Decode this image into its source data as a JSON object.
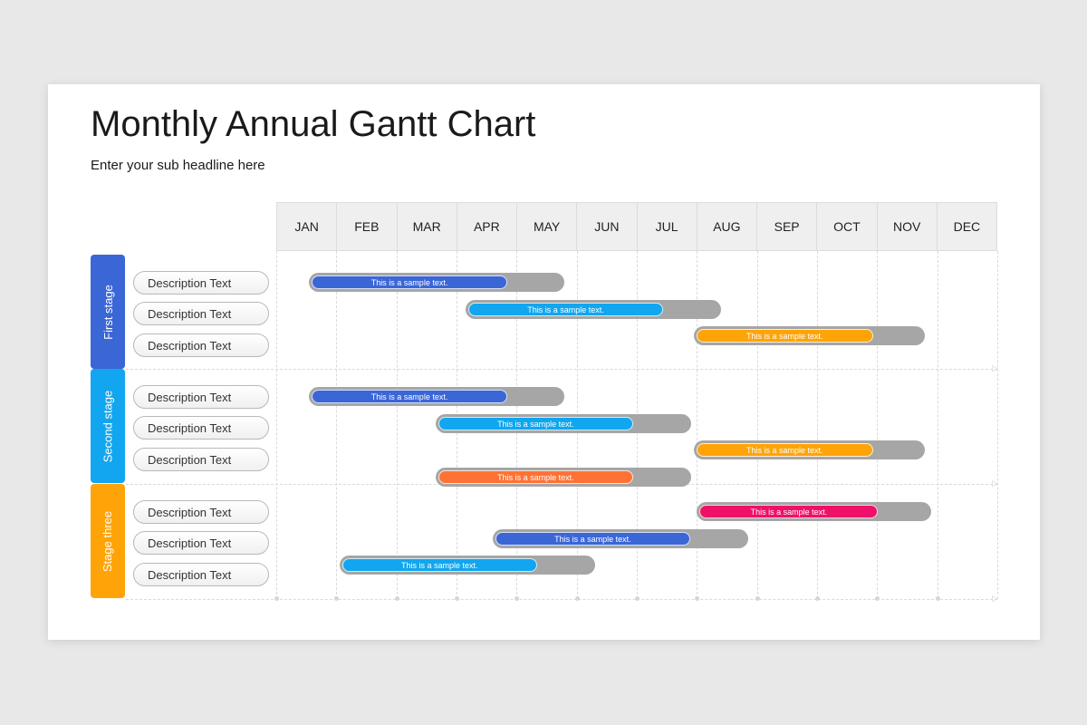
{
  "title": "Monthly Annual Gantt Chart",
  "subtitle": "Enter your sub headline here",
  "months": [
    "JAN",
    "FEB",
    "MAR",
    "APR",
    "MAY",
    "JUN",
    "JUL",
    "AUG",
    "SEP",
    "OCT",
    "NOV",
    "DEC"
  ],
  "colors": {
    "blue": "#3a66d6",
    "cyan": "#11a6ef",
    "amber": "#fea408",
    "orange": "#ff7235",
    "pink": "#ef1167",
    "track": "#a6a6a6"
  },
  "stages": [
    {
      "label": "First stage",
      "color": "#3a66d6",
      "rows": [
        {
          "description": "Description Text",
          "bar_text": "This is a sample text.",
          "bar_color": "#3a66d6",
          "start_month": 1.55,
          "end_month": 5.8,
          "progress": 0.78
        },
        {
          "description": "Description Text",
          "bar_text": "This is a sample text.",
          "bar_color": "#11a6ef",
          "start_month": 4.15,
          "end_month": 8.4,
          "progress": 0.78
        },
        {
          "description": "Description Text",
          "bar_text": "This is a sample text.",
          "bar_color": "#fea408",
          "start_month": 7.95,
          "end_month": 11.8,
          "progress": 0.78
        }
      ]
    },
    {
      "label": "Second stage",
      "color": "#11a6ef",
      "rows": [
        {
          "description": "Description Text",
          "bar_text": "This is a sample text.",
          "bar_color": "#3a66d6",
          "start_month": 1.55,
          "end_month": 5.8,
          "progress": 0.78
        },
        {
          "description": "Description Text",
          "bar_text": "This is a sample text.",
          "bar_color": "#11a6ef",
          "start_month": 3.65,
          "end_month": 7.9,
          "progress": 0.78
        },
        {
          "description": "Description Text",
          "bar_text": "This is a sample text.",
          "bar_color": "#fea408",
          "start_month": 7.95,
          "end_month": 11.8,
          "progress": 0.78
        },
        {
          "description": "",
          "bar_text": "This is a sample text.",
          "bar_color": "#ff7235",
          "start_month": 3.65,
          "end_month": 7.9,
          "progress": 0.78
        }
      ]
    },
    {
      "label": "Stage three",
      "color": "#fea408",
      "rows": [
        {
          "description": "Description Text",
          "bar_text": "This is a sample text.",
          "bar_color": "#ef1167",
          "start_month": 8.0,
          "end_month": 11.9,
          "progress": 0.78
        },
        {
          "description": "Description Text",
          "bar_text": "This is a sample text.",
          "bar_color": "#3a66d6",
          "start_month": 4.6,
          "end_month": 8.85,
          "progress": 0.78
        },
        {
          "description": "Description Text",
          "bar_text": "This is a sample text.",
          "bar_color": "#11a6ef",
          "start_month": 2.05,
          "end_month": 6.3,
          "progress": 0.78
        }
      ]
    }
  ]
}
